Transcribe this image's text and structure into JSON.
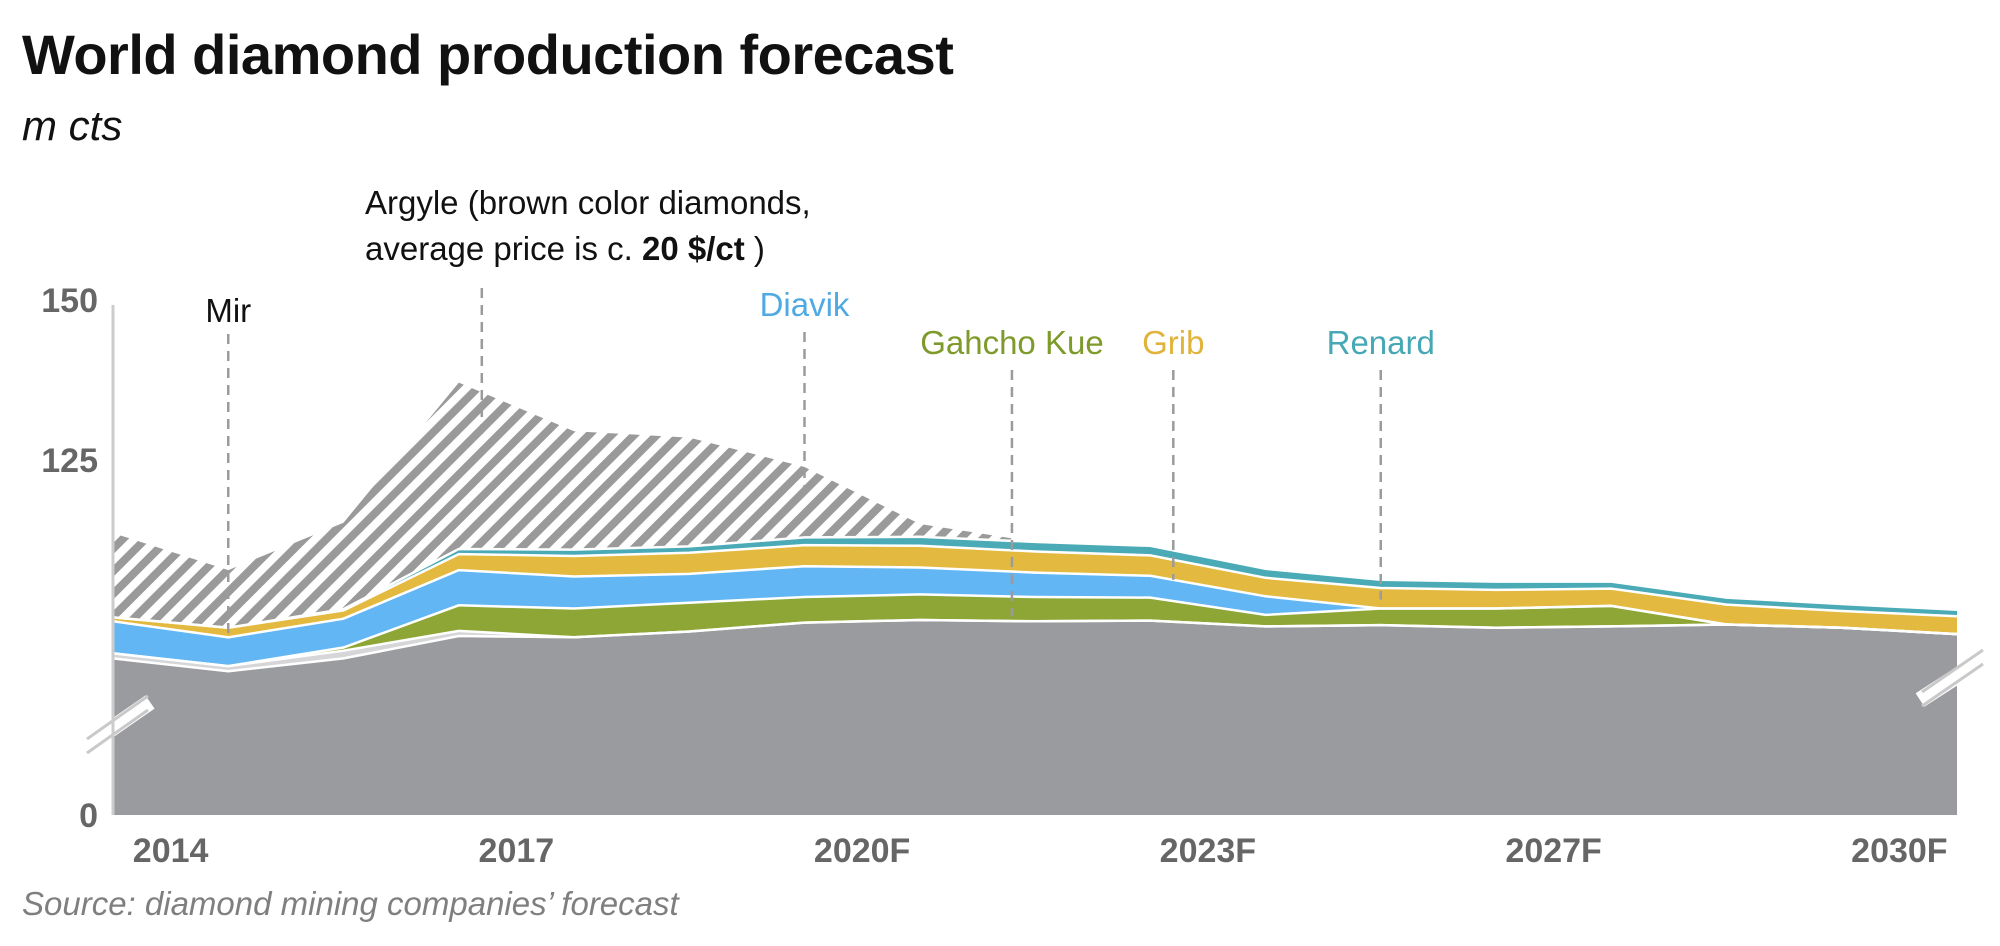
{
  "title": "World diamond production forecast",
  "subtitle": "m cts",
  "source": "Source: diamond mining companies’ forecast",
  "argyle_note": {
    "line1": "Argyle (brown color diamonds,",
    "line2_prefix": "average price is c. ",
    "line2_bold": "20 $/ct",
    "line2_suffix": " )"
  },
  "colors": {
    "base": "#9a9b9f",
    "mir": "#d6d6d8",
    "gahcho_kue": "#8ea636",
    "diavik": "#62b6f3",
    "grib": "#e3b940",
    "renard": "#4aaab6",
    "hatch": "#9a9a9a",
    "axis": "#cccccc"
  },
  "chart_data": {
    "type": "area",
    "stacked": true,
    "y_axis_break": true,
    "yticks": [
      "150",
      "125",
      "0"
    ],
    "ylim": [
      0,
      150
    ],
    "x_tick_labels": [
      {
        "label": "2014",
        "x": 2014
      },
      {
        "label": "2017",
        "x": 2017
      },
      {
        "label": "2020F",
        "x": 2020
      },
      {
        "label": "2023F",
        "x": 2023
      },
      {
        "label": "2027F",
        "x": 2026
      },
      {
        "label": "2030F",
        "x": 2029
      }
    ],
    "x": [
      2013.5,
      2014.5,
      2015.5,
      2016.5,
      2017.5,
      2018.5,
      2019.5,
      2020.5,
      2021.5,
      2022.5,
      2023.5,
      2024.5,
      2025.5,
      2026.5,
      2027.5,
      2028.5,
      2029.5
    ],
    "series": [
      {
        "name": "",
        "key": "base",
        "values": [
          94,
          92,
          94,
          97.5,
          97.3,
          98.2,
          99.6,
          100,
          99.8,
          99.9,
          99,
          99.2,
          98.8,
          99,
          99.3,
          98.8,
          97.8
        ]
      },
      {
        "name": "Mir",
        "key": "mir",
        "values": [
          0.8,
          0.8,
          1.2,
          0.8,
          0,
          0,
          0,
          0,
          0,
          0,
          0,
          0,
          0,
          0,
          0,
          0,
          0
        ]
      },
      {
        "name": "Gahcho Kue",
        "key": "gahcho_kue",
        "values": [
          0,
          0,
          0.5,
          4,
          4.5,
          4.5,
          4,
          4,
          3.8,
          3.6,
          1.8,
          2.6,
          3,
          3.2,
          0,
          0,
          0
        ]
      },
      {
        "name": "Diavik",
        "key": "diavik",
        "values": [
          5,
          4.5,
          4.5,
          5.5,
          5,
          4.5,
          4.8,
          4.2,
          3.8,
          3.4,
          2.9,
          0,
          0,
          0,
          0,
          0,
          0
        ]
      },
      {
        "name": "Grib",
        "key": "grib",
        "values": [
          0.6,
          1.5,
          1.3,
          2.5,
          3.2,
          3.3,
          3.3,
          3.4,
          3.3,
          3.2,
          2.9,
          3.2,
          2.9,
          2.7,
          3.1,
          2.6,
          2.8
        ]
      },
      {
        "name": "Renard",
        "key": "renard",
        "values": [
          0,
          0,
          0.2,
          0.8,
          1,
          1,
          1.2,
          1.4,
          1.5,
          1.5,
          1.4,
          1.3,
          1.3,
          1.1,
          1.1,
          1.1,
          1
        ]
      },
      {
        "name": "Argyle",
        "key": "argyle",
        "values": [
          13.2,
          9,
          13.5,
          26,
          18.5,
          17,
          11,
          2,
          0,
          0,
          0,
          0,
          0,
          0,
          0,
          0,
          0
        ]
      }
    ],
    "annotations": [
      {
        "label": "Mir",
        "x": 2014.5,
        "key": "mir"
      },
      {
        "label": "Argyle",
        "x": 2016.7,
        "key": "argyle"
      },
      {
        "label": "Diavik",
        "x": 2019.5,
        "key": "diavik"
      },
      {
        "label": "Gahcho Kue",
        "x": 2021.3,
        "key": "gahcho_kue"
      },
      {
        "label": "Grib",
        "x": 2022.7,
        "key": "grib"
      },
      {
        "label": "Renard",
        "x": 2024.5,
        "key": "renard"
      }
    ]
  }
}
